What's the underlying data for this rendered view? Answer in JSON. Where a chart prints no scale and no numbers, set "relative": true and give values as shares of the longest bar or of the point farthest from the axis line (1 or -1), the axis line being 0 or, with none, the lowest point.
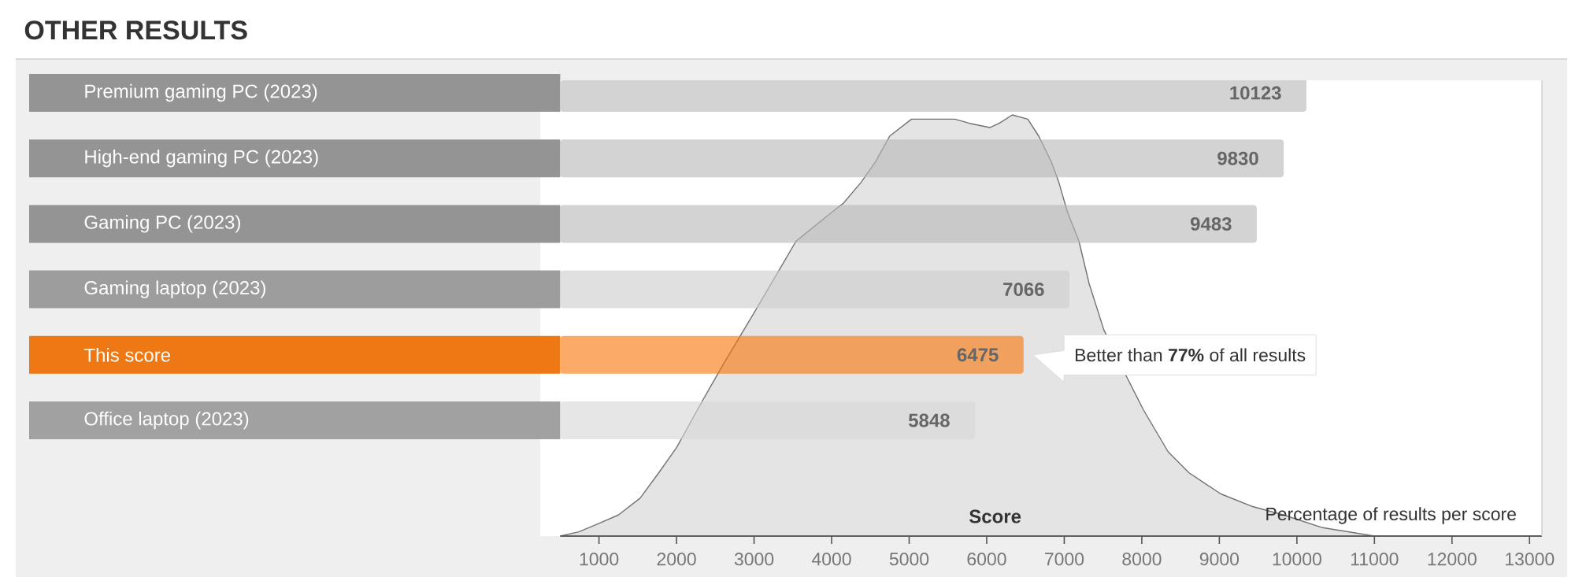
{
  "chart_data": [
    {
      "type": "bar",
      "orientation": "horizontal",
      "title": "OTHER RESULTS",
      "categories": [
        "Premium gaming PC (2023)",
        "High-end gaming PC (2023)",
        "Gaming PC (2023)",
        "Gaming laptop (2023)",
        "This score",
        "Office laptop (2023)"
      ],
      "values": [
        10123,
        9830,
        9483,
        7066,
        6475,
        5848
      ],
      "colors": [
        "#d3d3d3",
        "#d3d3d3",
        "#d3d3d3",
        "#e0e0e0",
        "#fbab67",
        "#e6e6e6"
      ],
      "xlim": [
        500,
        13160
      ],
      "tick_labels": "y",
      "data_labels": true,
      "annotations": [
        {
          "text": "Better than **77%** of all results",
          "x": 6475,
          "y": "This score"
        }
      ]
    },
    {
      "type": "area",
      "relative": true,
      "color": "#e4e4e4",
      "x": [
        500,
        740,
        1000,
        1250,
        1530,
        1770,
        2000,
        2330,
        2610,
        3000,
        3350,
        3540,
        4010,
        4150,
        4380,
        4570,
        4750,
        5030,
        5310,
        5590,
        5780,
        6040,
        6160,
        6330,
        6530,
        6670,
        6830,
        6930,
        7040,
        7190,
        7320,
        7510,
        7800,
        8020,
        8340,
        8610,
        9020,
        9430,
        9830,
        10330,
        11000,
        11900,
        13160
      ],
      "values": [
        0,
        0.01,
        0.03,
        0.05,
        0.09,
        0.15,
        0.21,
        0.32,
        0.41,
        0.53,
        0.64,
        0.7,
        0.77,
        0.79,
        0.84,
        0.89,
        0.95,
        0.99,
        0.99,
        0.99,
        0.98,
        0.97,
        0.98,
        1.0,
        0.99,
        0.95,
        0.89,
        0.84,
        0.77,
        0.7,
        0.6,
        0.49,
        0.38,
        0.3,
        0.2,
        0.15,
        0.1,
        0.07,
        0.05,
        0.02,
        0.0,
        0.0,
        0.0
      ],
      "xlim": [
        500,
        13160
      ],
      "xticks": [
        1000,
        2000,
        3000,
        4000,
        5000,
        6000,
        7000,
        8000,
        9000,
        10000,
        11000,
        12000,
        13000
      ],
      "xlabel": "Score",
      "ylabel": "Percentage of results per score"
    }
  ]
}
